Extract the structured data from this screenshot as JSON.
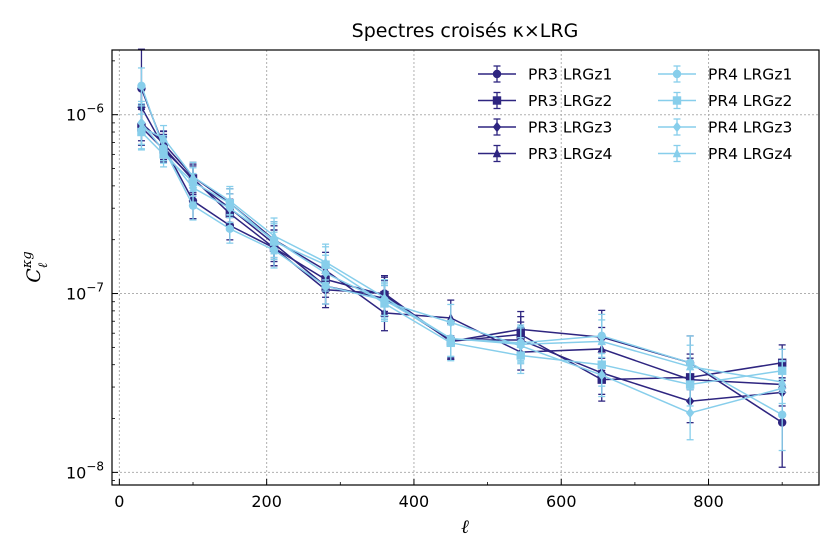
{
  "chart_data": {
    "type": "line",
    "title": "Spectres croisés κ×LRG",
    "xlabel": "ℓ",
    "ylabel": "C_ℓ^κg",
    "ylabel_main": "C",
    "ylabel_sup": "κg",
    "ylabel_sub": "ℓ",
    "xlim": [
      -10,
      950
    ],
    "ylim": [
      8.5e-09,
      2.3e-06
    ],
    "yscale": "log",
    "grid": true,
    "legend_position": "top-right",
    "xticks": [
      0,
      200,
      400,
      600,
      800
    ],
    "xtick_labels": [
      "0",
      "200",
      "400",
      "600",
      "800"
    ],
    "yticks": [
      1e-08,
      1e-07,
      1e-06
    ],
    "ytick_bases": [
      "10",
      "10",
      "10"
    ],
    "ytick_exponents": [
      "−8",
      "−7",
      "−6"
    ],
    "colors": {
      "pr3": "#2e2580",
      "pr4": "#87ceeb"
    },
    "series": [
      {
        "name": "PR3 LRGz1",
        "color": "#2e2580",
        "marker": "circle",
        "x": [
          30,
          60,
          100,
          150,
          210,
          280,
          360,
          450,
          545,
          655,
          775,
          900
        ],
        "y": [
          1.4e-06,
          6.7e-07,
          3.3e-07,
          2.4e-07,
          1.8e-07,
          1.05e-07,
          1e-07,
          5.4e-08,
          6.3e-08,
          5.7e-08,
          4.1e-08,
          1.9e-08
        ],
        "err": [
          0.22,
          0.08,
          0.1,
          0.08,
          0.1,
          0.1,
          0.1,
          0.1,
          0.1,
          0.15,
          0.15,
          0.25
        ]
      },
      {
        "name": "PR3 LRGz2",
        "color": "#2e2580",
        "marker": "square",
        "x": [
          30,
          60,
          100,
          150,
          210,
          280,
          360,
          450,
          545,
          655,
          775,
          900
        ],
        "y": [
          8.5e-07,
          6.4e-07,
          4.4e-07,
          2.8e-07,
          1.8e-07,
          1.2e-07,
          9.8e-08,
          5.4e-08,
          5.9e-08,
          3.3e-08,
          3.4e-08,
          4.1e-08
        ],
        "err": [
          0.1,
          0.07,
          0.08,
          0.08,
          0.1,
          0.1,
          0.1,
          0.1,
          0.1,
          0.12,
          0.13,
          0.1
        ]
      },
      {
        "name": "PR3 LRGz3",
        "color": "#2e2580",
        "marker": "diamond",
        "x": [
          30,
          60,
          100,
          150,
          210,
          280,
          360,
          450,
          545,
          655,
          775,
          900
        ],
        "y": [
          1.1e-06,
          6.6e-07,
          4.3e-07,
          3e-07,
          1.9e-07,
          1.1e-07,
          9.4e-08,
          5.5e-08,
          5.5e-08,
          3.6e-08,
          2.5e-08,
          2.8e-08
        ],
        "err": [
          0.12,
          0.07,
          0.08,
          0.08,
          0.1,
          0.1,
          0.1,
          0.1,
          0.1,
          0.12,
          0.12,
          0.12
        ]
      },
      {
        "name": "PR3 LRGz4",
        "color": "#2e2580",
        "marker": "triangle",
        "x": [
          30,
          60,
          100,
          150,
          210,
          280,
          360,
          450,
          545,
          655,
          775,
          900
        ],
        "y": [
          9e-07,
          6.9e-07,
          4.5e-07,
          3.2e-07,
          2e-07,
          1.35e-07,
          7.8e-08,
          7.3e-08,
          4.7e-08,
          4.9e-08,
          3.3e-08,
          3.1e-08
        ],
        "err": [
          0.1,
          0.07,
          0.08,
          0.08,
          0.1,
          0.1,
          0.1,
          0.1,
          0.1,
          0.12,
          0.12,
          0.12
        ]
      },
      {
        "name": "PR4 LRGz1",
        "color": "#87ceeb",
        "marker": "circle",
        "x": [
          30,
          60,
          100,
          150,
          210,
          280,
          360,
          450,
          545,
          655,
          775,
          900
        ],
        "y": [
          1.45e-06,
          6.5e-07,
          3.1e-07,
          2.3e-07,
          1.75e-07,
          1.1e-07,
          9.2e-08,
          5.6e-08,
          5.3e-08,
          5.8e-08,
          4.1e-08,
          2.1e-08
        ],
        "err": [
          0.1,
          0.07,
          0.08,
          0.08,
          0.1,
          0.1,
          0.1,
          0.1,
          0.1,
          0.12,
          0.15,
          0.2
        ]
      },
      {
        "name": "PR4 LRGz2",
        "color": "#87ceeb",
        "marker": "square",
        "x": [
          30,
          60,
          100,
          150,
          210,
          280,
          360,
          450,
          545,
          655,
          775,
          900
        ],
        "y": [
          8e-07,
          6e-07,
          4.2e-07,
          3.2e-07,
          1.95e-07,
          1.45e-07,
          8.8e-08,
          5.3e-08,
          4.5e-08,
          4e-08,
          3.1e-08,
          3.7e-08
        ],
        "err": [
          0.1,
          0.07,
          0.08,
          0.08,
          0.1,
          0.1,
          0.1,
          0.1,
          0.1,
          0.12,
          0.12,
          0.12
        ]
      },
      {
        "name": "PR4 LRGz3",
        "color": "#87ceeb",
        "marker": "diamond",
        "x": [
          30,
          60,
          100,
          150,
          210,
          280,
          360,
          450,
          545,
          655,
          775,
          900
        ],
        "y": [
          9e-07,
          6.3e-07,
          3.9e-07,
          3e-07,
          2e-07,
          1.3e-07,
          9e-08,
          6.9e-08,
          5.1e-08,
          3.5e-08,
          2.15e-08,
          2.95e-08
        ],
        "err": [
          0.12,
          0.07,
          0.08,
          0.08,
          0.1,
          0.1,
          0.1,
          0.1,
          0.1,
          0.12,
          0.15,
          0.15
        ]
      },
      {
        "name": "PR4 LRGz4",
        "color": "#87ceeb",
        "marker": "triangle",
        "x": [
          30,
          60,
          100,
          150,
          210,
          280,
          360,
          450,
          545,
          655,
          775,
          900
        ],
        "y": [
          8.5e-07,
          7.4e-07,
          4.5e-07,
          3.3e-07,
          2.1e-07,
          1.5e-07,
          9.5e-08,
          5.6e-08,
          5.2e-08,
          5.4e-08,
          3.9e-08,
          3.2e-08
        ],
        "err": [
          0.12,
          0.07,
          0.08,
          0.08,
          0.1,
          0.1,
          0.1,
          0.1,
          0.1,
          0.12,
          0.12,
          0.12
        ]
      }
    ]
  }
}
